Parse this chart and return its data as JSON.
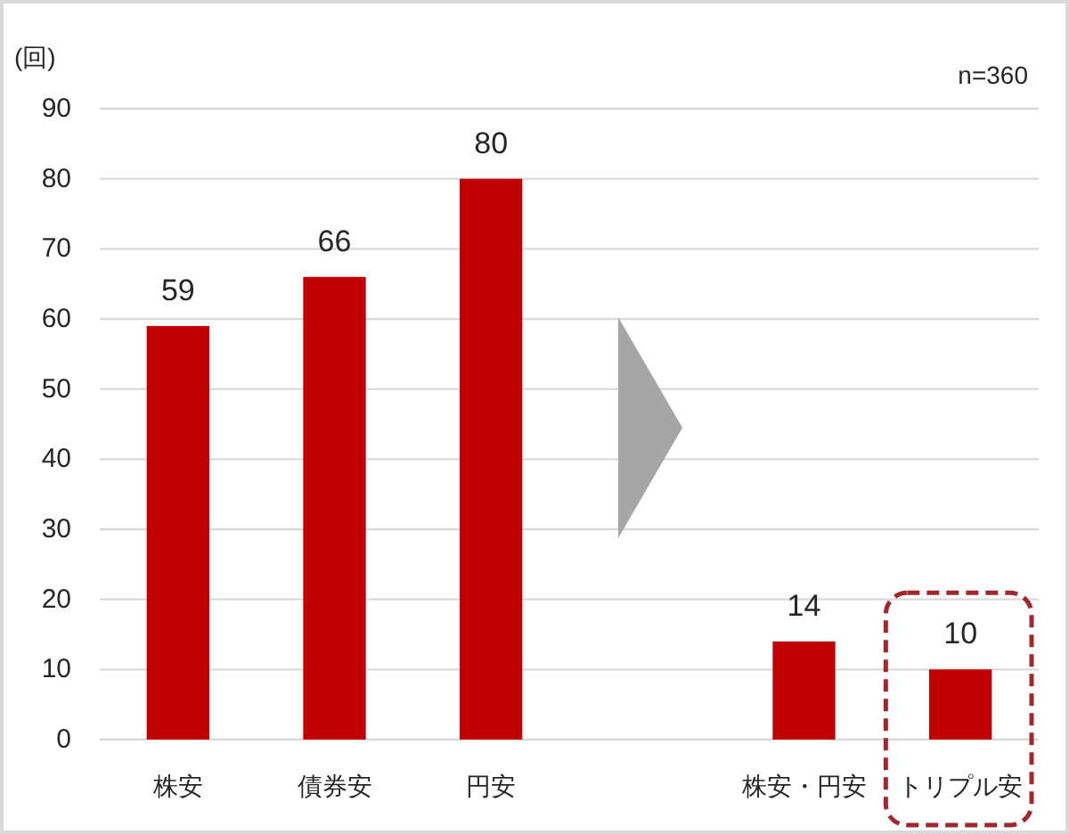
{
  "chart_data": {
    "type": "bar",
    "ylabel": "(回)",
    "annotations": [
      "n=360"
    ],
    "categories": [
      "株安",
      "債券安",
      "円安",
      null,
      "株安・円安",
      "トリプル安"
    ],
    "values": [
      59,
      66,
      80,
      null,
      14,
      10
    ],
    "color": "#c00000",
    "ylim": [
      0,
      90
    ],
    "yticks": [
      0,
      10,
      20,
      30,
      40,
      50,
      60,
      70,
      80,
      90
    ],
    "grid": "y",
    "data_labels": true
  }
}
